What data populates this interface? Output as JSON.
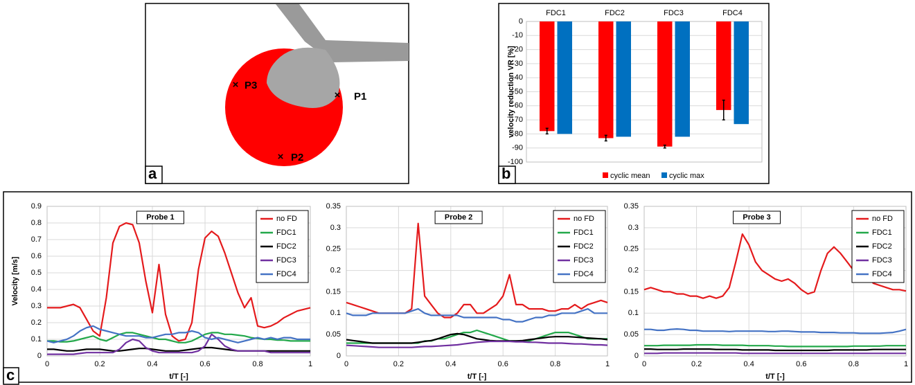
{
  "panel_a": {
    "label": "a",
    "points": [
      "P1",
      "P2",
      "P3"
    ]
  },
  "panel_c": {
    "label": "c"
  },
  "chart_data": [
    {
      "type": "bar",
      "panel_label": "b",
      "ylabel": "velocity reduction VR [%]",
      "categories": [
        "FDC1",
        "FDC2",
        "FDC3",
        "FDC4"
      ],
      "series": [
        {
          "name": "cyclic mean",
          "color": "#ff0000",
          "values": [
            -78,
            -83,
            -89,
            -63
          ],
          "errors": [
            2,
            2,
            1,
            7
          ]
        },
        {
          "name": "cyclic max",
          "color": "#0070c0",
          "values": [
            -80,
            -82,
            -82,
            -73
          ]
        }
      ],
      "ylim": [
        -100,
        0
      ],
      "yticks": [
        0,
        -10,
        -20,
        -30,
        -40,
        -50,
        -60,
        -70,
        -80,
        -90,
        -100
      ],
      "grid": true,
      "legend": "bottom"
    },
    {
      "type": "line",
      "title": "Probe 1",
      "ylabel": "Velocity [m/s]",
      "xlabel": "t/T [-]",
      "x": [
        0,
        0.025,
        0.05,
        0.075,
        0.1,
        0.125,
        0.15,
        0.175,
        0.2,
        0.225,
        0.25,
        0.275,
        0.3,
        0.325,
        0.35,
        0.375,
        0.4,
        0.425,
        0.45,
        0.475,
        0.5,
        0.525,
        0.55,
        0.575,
        0.6,
        0.625,
        0.65,
        0.675,
        0.7,
        0.725,
        0.75,
        0.775,
        0.8,
        0.825,
        0.85,
        0.875,
        0.9,
        0.925,
        0.95,
        0.975,
        1
      ],
      "series": [
        {
          "name": "no FD",
          "color": "#e41a1c",
          "values": [
            0.29,
            0.29,
            0.29,
            0.3,
            0.31,
            0.29,
            0.22,
            0.15,
            0.12,
            0.35,
            0.68,
            0.78,
            0.8,
            0.79,
            0.68,
            0.45,
            0.26,
            0.55,
            0.25,
            0.12,
            0.09,
            0.1,
            0.2,
            0.52,
            0.71,
            0.75,
            0.72,
            0.62,
            0.5,
            0.38,
            0.29,
            0.35,
            0.18,
            0.17,
            0.18,
            0.2,
            0.23,
            0.25,
            0.27,
            0.28,
            0.29
          ]
        },
        {
          "name": "FDC1",
          "color": "#22a84a",
          "values": [
            0.09,
            0.09,
            0.085,
            0.085,
            0.09,
            0.1,
            0.11,
            0.12,
            0.1,
            0.09,
            0.11,
            0.13,
            0.14,
            0.14,
            0.13,
            0.12,
            0.11,
            0.1,
            0.1,
            0.09,
            0.08,
            0.08,
            0.09,
            0.11,
            0.13,
            0.14,
            0.14,
            0.13,
            0.13,
            0.125,
            0.12,
            0.11,
            0.105,
            0.1,
            0.1,
            0.095,
            0.095,
            0.09,
            0.09,
            0.09,
            0.09
          ]
        },
        {
          "name": "FDC2",
          "color": "#000000",
          "values": [
            0.04,
            0.04,
            0.035,
            0.03,
            0.03,
            0.035,
            0.04,
            0.04,
            0.04,
            0.035,
            0.03,
            0.03,
            0.035,
            0.04,
            0.045,
            0.045,
            0.04,
            0.035,
            0.03,
            0.03,
            0.03,
            0.035,
            0.04,
            0.045,
            0.05,
            0.05,
            0.045,
            0.04,
            0.035,
            0.03,
            0.03,
            0.03,
            0.03,
            0.03,
            0.03,
            0.03,
            0.03,
            0.03,
            0.03,
            0.03,
            0.03
          ]
        },
        {
          "name": "FDC3",
          "color": "#7030a0",
          "values": [
            0.01,
            0.01,
            0.01,
            0.01,
            0.01,
            0.015,
            0.02,
            0.02,
            0.02,
            0.02,
            0.02,
            0.04,
            0.08,
            0.1,
            0.09,
            0.05,
            0.03,
            0.02,
            0.02,
            0.02,
            0.02,
            0.02,
            0.02,
            0.03,
            0.06,
            0.13,
            0.1,
            0.06,
            0.04,
            0.03,
            0.03,
            0.03,
            0.03,
            0.03,
            0.02,
            0.02,
            0.02,
            0.02,
            0.02,
            0.02,
            0.02
          ]
        },
        {
          "name": "FDC4",
          "color": "#4472c4",
          "values": [
            0.09,
            0.08,
            0.09,
            0.1,
            0.12,
            0.15,
            0.17,
            0.18,
            0.16,
            0.15,
            0.14,
            0.13,
            0.12,
            0.12,
            0.12,
            0.11,
            0.11,
            0.12,
            0.13,
            0.13,
            0.14,
            0.14,
            0.15,
            0.14,
            0.11,
            0.1,
            0.11,
            0.1,
            0.09,
            0.08,
            0.09,
            0.1,
            0.11,
            0.1,
            0.11,
            0.1,
            0.11,
            0.11,
            0.1,
            0.1,
            0.1
          ]
        }
      ],
      "xlim": [
        0,
        1
      ],
      "xticks": [
        0,
        0.2,
        0.4,
        0.6,
        0.8,
        1
      ],
      "ylim": [
        0,
        0.9
      ],
      "yticks": [
        0,
        0.1,
        0.2,
        0.3,
        0.4,
        0.5,
        0.6,
        0.7,
        0.8,
        0.9
      ],
      "grid": true,
      "legend": "upper right"
    },
    {
      "type": "line",
      "title": "Probe 2",
      "xlabel": "t/T [-]",
      "x": [
        0,
        0.025,
        0.05,
        0.075,
        0.1,
        0.125,
        0.15,
        0.175,
        0.2,
        0.225,
        0.25,
        0.275,
        0.3,
        0.325,
        0.35,
        0.375,
        0.4,
        0.425,
        0.45,
        0.475,
        0.5,
        0.525,
        0.55,
        0.575,
        0.6,
        0.625,
        0.65,
        0.675,
        0.7,
        0.725,
        0.75,
        0.775,
        0.8,
        0.825,
        0.85,
        0.875,
        0.9,
        0.925,
        0.95,
        0.975,
        1
      ],
      "series": [
        {
          "name": "no FD",
          "color": "#e41a1c",
          "values": [
            0.125,
            0.12,
            0.115,
            0.11,
            0.105,
            0.1,
            0.1,
            0.1,
            0.1,
            0.1,
            0.11,
            0.31,
            0.14,
            0.12,
            0.1,
            0.09,
            0.09,
            0.1,
            0.12,
            0.12,
            0.1,
            0.1,
            0.11,
            0.12,
            0.14,
            0.19,
            0.12,
            0.12,
            0.11,
            0.11,
            0.11,
            0.105,
            0.105,
            0.11,
            0.11,
            0.12,
            0.11,
            0.12,
            0.125,
            0.13,
            0.125
          ]
        },
        {
          "name": "FDC1",
          "color": "#22a84a",
          "values": [
            0.03,
            0.03,
            0.03,
            0.03,
            0.03,
            0.03,
            0.03,
            0.03,
            0.03,
            0.03,
            0.03,
            0.03,
            0.035,
            0.035,
            0.04,
            0.04,
            0.045,
            0.05,
            0.055,
            0.055,
            0.06,
            0.055,
            0.05,
            0.045,
            0.04,
            0.035,
            0.035,
            0.035,
            0.035,
            0.04,
            0.045,
            0.05,
            0.055,
            0.055,
            0.055,
            0.05,
            0.045,
            0.04,
            0.04,
            0.04,
            0.04
          ]
        },
        {
          "name": "FDC2",
          "color": "#000000",
          "values": [
            0.038,
            0.036,
            0.034,
            0.032,
            0.03,
            0.03,
            0.03,
            0.03,
            0.03,
            0.03,
            0.03,
            0.032,
            0.034,
            0.036,
            0.04,
            0.045,
            0.05,
            0.052,
            0.05,
            0.045,
            0.04,
            0.038,
            0.036,
            0.035,
            0.035,
            0.035,
            0.035,
            0.036,
            0.038,
            0.04,
            0.042,
            0.044,
            0.045,
            0.045,
            0.045,
            0.044,
            0.043,
            0.042,
            0.041,
            0.04,
            0.038
          ]
        },
        {
          "name": "FDC3",
          "color": "#7030a0",
          "values": [
            0.025,
            0.024,
            0.023,
            0.022,
            0.021,
            0.02,
            0.02,
            0.02,
            0.02,
            0.02,
            0.02,
            0.021,
            0.022,
            0.022,
            0.023,
            0.024,
            0.025,
            0.026,
            0.028,
            0.03,
            0.032,
            0.033,
            0.034,
            0.034,
            0.034,
            0.034,
            0.033,
            0.033,
            0.032,
            0.032,
            0.031,
            0.03,
            0.03,
            0.03,
            0.029,
            0.028,
            0.028,
            0.027,
            0.026,
            0.026,
            0.025
          ]
        },
        {
          "name": "FDC4",
          "color": "#4472c4",
          "values": [
            0.1,
            0.095,
            0.095,
            0.095,
            0.1,
            0.1,
            0.1,
            0.1,
            0.1,
            0.1,
            0.105,
            0.11,
            0.1,
            0.095,
            0.095,
            0.095,
            0.095,
            0.095,
            0.09,
            0.09,
            0.09,
            0.09,
            0.09,
            0.09,
            0.085,
            0.085,
            0.08,
            0.08,
            0.085,
            0.09,
            0.09,
            0.095,
            0.095,
            0.1,
            0.1,
            0.1,
            0.105,
            0.11,
            0.1,
            0.1,
            0.1
          ]
        }
      ],
      "xlim": [
        0,
        1
      ],
      "xticks": [
        0,
        0.2,
        0.4,
        0.6,
        0.8,
        1
      ],
      "ylim": [
        0,
        0.35
      ],
      "yticks": [
        0,
        0.05,
        0.1,
        0.15,
        0.2,
        0.25,
        0.3,
        0.35
      ],
      "grid": true,
      "legend": "upper right"
    },
    {
      "type": "line",
      "title": "Probe 3",
      "xlabel": "t/T [-]",
      "x": [
        0,
        0.025,
        0.05,
        0.075,
        0.1,
        0.125,
        0.15,
        0.175,
        0.2,
        0.225,
        0.25,
        0.275,
        0.3,
        0.325,
        0.35,
        0.375,
        0.4,
        0.425,
        0.45,
        0.475,
        0.5,
        0.525,
        0.55,
        0.575,
        0.6,
        0.625,
        0.65,
        0.675,
        0.7,
        0.725,
        0.75,
        0.775,
        0.8,
        0.825,
        0.85,
        0.875,
        0.9,
        0.925,
        0.95,
        0.975,
        1
      ],
      "series": [
        {
          "name": "no FD",
          "color": "#e41a1c",
          "values": [
            0.155,
            0.16,
            0.155,
            0.15,
            0.15,
            0.145,
            0.145,
            0.14,
            0.14,
            0.135,
            0.14,
            0.135,
            0.14,
            0.16,
            0.22,
            0.285,
            0.26,
            0.22,
            0.2,
            0.19,
            0.18,
            0.175,
            0.18,
            0.17,
            0.155,
            0.145,
            0.15,
            0.2,
            0.24,
            0.255,
            0.24,
            0.22,
            0.2,
            0.195,
            0.19,
            0.17,
            0.165,
            0.16,
            0.155,
            0.155,
            0.152
          ]
        },
        {
          "name": "FDC1",
          "color": "#22a84a",
          "values": [
            0.024,
            0.024,
            0.024,
            0.025,
            0.025,
            0.025,
            0.025,
            0.025,
            0.026,
            0.026,
            0.026,
            0.026,
            0.025,
            0.025,
            0.025,
            0.025,
            0.024,
            0.024,
            0.024,
            0.024,
            0.023,
            0.023,
            0.022,
            0.022,
            0.022,
            0.022,
            0.022,
            0.022,
            0.022,
            0.022,
            0.022,
            0.022,
            0.023,
            0.023,
            0.023,
            0.023,
            0.023,
            0.024,
            0.024,
            0.024,
            0.024
          ]
        },
        {
          "name": "FDC2",
          "color": "#000000",
          "values": [
            0.016,
            0.016,
            0.015,
            0.015,
            0.015,
            0.015,
            0.016,
            0.016,
            0.016,
            0.016,
            0.016,
            0.015,
            0.015,
            0.015,
            0.015,
            0.014,
            0.014,
            0.014,
            0.014,
            0.014,
            0.013,
            0.013,
            0.013,
            0.013,
            0.013,
            0.013,
            0.013,
            0.013,
            0.013,
            0.014,
            0.014,
            0.014,
            0.014,
            0.014,
            0.014,
            0.015,
            0.015,
            0.015,
            0.015,
            0.015,
            0.015
          ]
        },
        {
          "name": "FDC3",
          "color": "#7030a0",
          "values": [
            0.006,
            0.006,
            0.006,
            0.007,
            0.007,
            0.007,
            0.007,
            0.007,
            0.007,
            0.007,
            0.007,
            0.007,
            0.007,
            0.007,
            0.007,
            0.006,
            0.006,
            0.006,
            0.006,
            0.006,
            0.006,
            0.006,
            0.006,
            0.006,
            0.006,
            0.006,
            0.006,
            0.006,
            0.006,
            0.006,
            0.006,
            0.006,
            0.006,
            0.006,
            0.006,
            0.006,
            0.006,
            0.006,
            0.006,
            0.006,
            0.006
          ]
        },
        {
          "name": "FDC4",
          "color": "#4472c4",
          "values": [
            0.062,
            0.062,
            0.06,
            0.06,
            0.062,
            0.063,
            0.062,
            0.06,
            0.06,
            0.058,
            0.058,
            0.058,
            0.058,
            0.057,
            0.058,
            0.058,
            0.058,
            0.058,
            0.058,
            0.057,
            0.057,
            0.058,
            0.058,
            0.057,
            0.056,
            0.056,
            0.056,
            0.055,
            0.055,
            0.055,
            0.054,
            0.054,
            0.054,
            0.053,
            0.053,
            0.053,
            0.053,
            0.054,
            0.055,
            0.058,
            0.062
          ]
        }
      ],
      "xlim": [
        0,
        1
      ],
      "xticks": [
        0,
        0.2,
        0.4,
        0.6,
        0.8,
        1
      ],
      "ylim": [
        0,
        0.35
      ],
      "yticks": [
        0,
        0.05,
        0.1,
        0.15,
        0.2,
        0.25,
        0.3,
        0.35
      ],
      "grid": true,
      "legend": "upper right"
    }
  ]
}
